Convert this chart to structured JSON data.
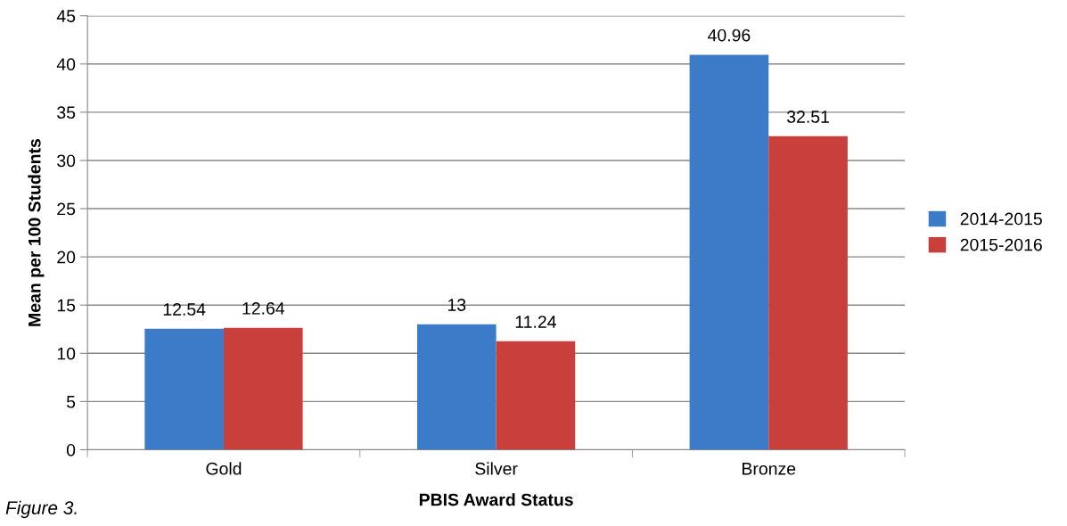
{
  "chart_data": {
    "type": "bar",
    "xlabel": "PBIS Award Status",
    "ylabel": "Mean per 100 Students",
    "categories": [
      "Gold",
      "Silver",
      "Bronze"
    ],
    "series": [
      {
        "name": "2014-2015",
        "color": "#3b7bc8",
        "values": [
          12.54,
          13,
          40.96
        ]
      },
      {
        "name": "2015-2016",
        "color": "#c93f3b",
        "values": [
          12.64,
          11.24,
          32.51
        ]
      }
    ],
    "ylim": [
      0,
      45
    ],
    "yticks": [
      0,
      5,
      10,
      15,
      20,
      25,
      30,
      35,
      40,
      45
    ],
    "grid": "y",
    "legend": "right",
    "data_labels": true,
    "annotations": [
      "Figure 3."
    ]
  }
}
